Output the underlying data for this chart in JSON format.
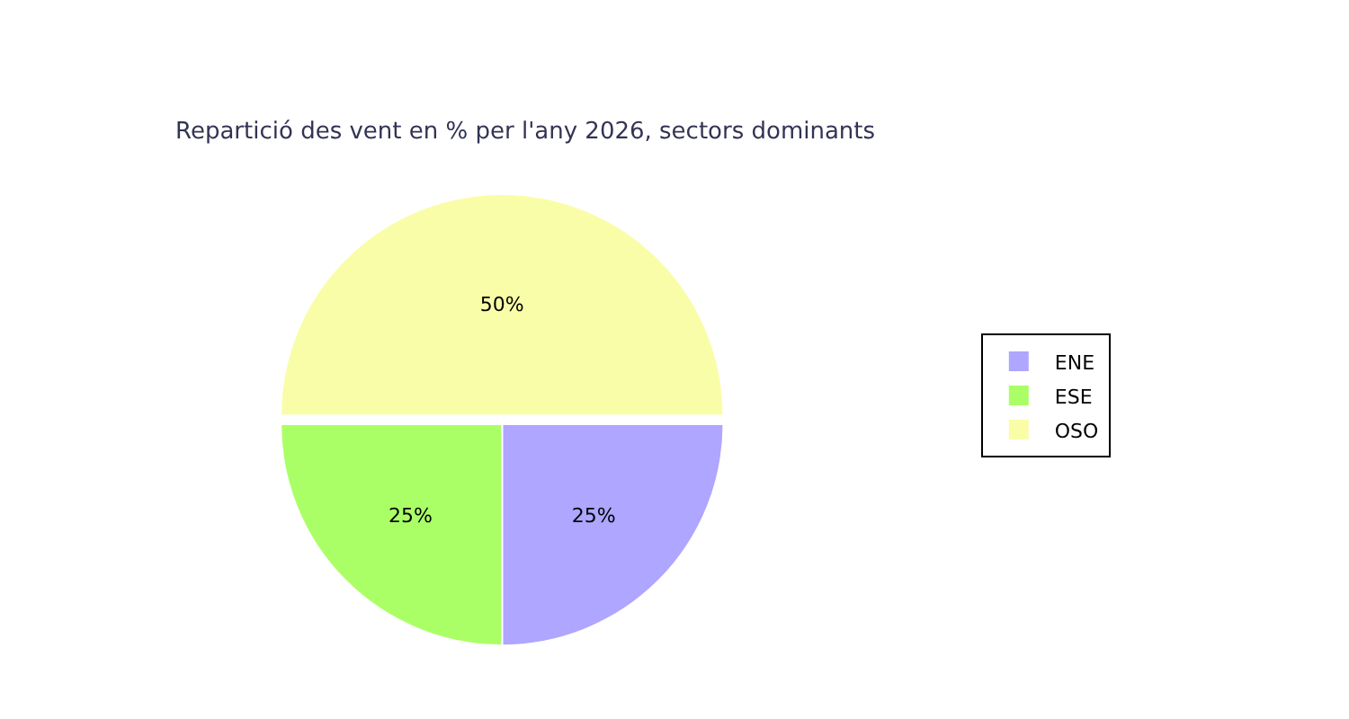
{
  "chart_data": {
    "type": "pie",
    "title": "Repartició des vent en % per l'any 2026, sectors dominants",
    "categories": [
      "ENE",
      "ESE",
      "OSO"
    ],
    "values": [
      25,
      25,
      50
    ],
    "colors": [
      "#aea6ff",
      "#aaff66",
      "#f9fda8"
    ],
    "value_labels": [
      "25%",
      "25%",
      "50%"
    ],
    "legend": "right"
  }
}
